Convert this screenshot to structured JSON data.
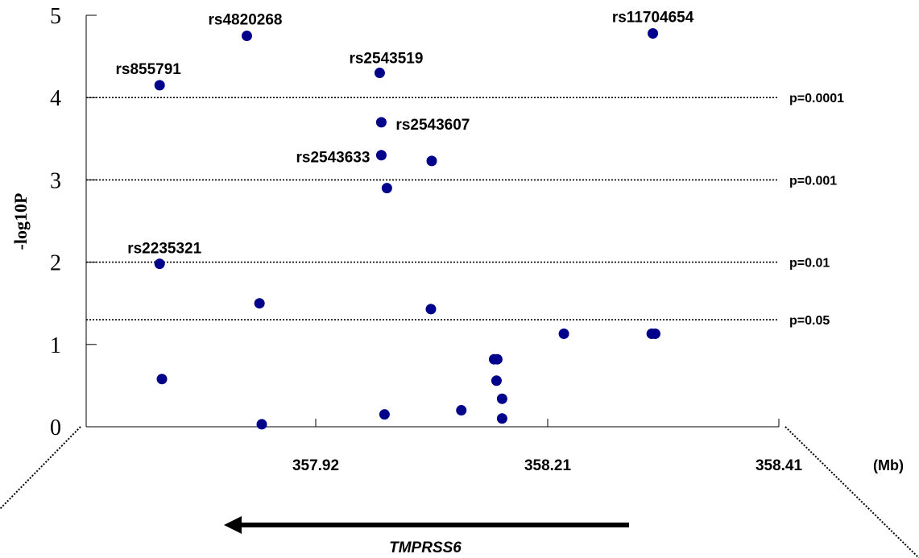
{
  "chart_data": {
    "type": "scatter",
    "xlabel": "(Mb)",
    "ylabel": "-log10P",
    "ylim": [
      0,
      5
    ],
    "xlim": [
      357.72,
      358.41
    ],
    "x_ticks": [
      357.92,
      358.21,
      358.41
    ],
    "y_ticks": [
      0,
      1,
      2,
      3,
      4,
      5
    ],
    "grid": false,
    "legend": "none",
    "marker_color": "#00008B",
    "thresholds": [
      {
        "label": "p=0.0001",
        "y": 4
      },
      {
        "label": "p=0.001",
        "y": 3
      },
      {
        "label": "p=0.01",
        "y": 2
      },
      {
        "label": "p=0.05",
        "y": 1.301
      }
    ],
    "points": [
      {
        "x": 357.86,
        "y": 4.75,
        "label": "rs4820268"
      },
      {
        "x": 358.301,
        "y": 4.78,
        "label": "rs11704654"
      },
      {
        "x": 358.0,
        "y": 4.3,
        "label": "rs2543519"
      },
      {
        "x": 357.784,
        "y": 4.15,
        "label": "rs855791"
      },
      {
        "x": 358.002,
        "y": 3.7,
        "label": "rs2543607"
      },
      {
        "x": 358.002,
        "y": 3.3,
        "label": "rs2543633"
      },
      {
        "x": 358.065,
        "y": 3.23,
        "label": ""
      },
      {
        "x": 358.009,
        "y": 2.9,
        "label": ""
      },
      {
        "x": 357.784,
        "y": 1.98,
        "label": "rs2235321"
      },
      {
        "x": 357.871,
        "y": 1.5,
        "label": ""
      },
      {
        "x": 358.064,
        "y": 1.43,
        "label": ""
      },
      {
        "x": 358.224,
        "y": 1.13,
        "label": ""
      },
      {
        "x": 358.3,
        "y": 1.13,
        "label": ""
      },
      {
        "x": 358.303,
        "y": 1.13,
        "label": ""
      },
      {
        "x": 358.143,
        "y": 0.82,
        "label": ""
      },
      {
        "x": 358.147,
        "y": 0.82,
        "label": ""
      },
      {
        "x": 357.786,
        "y": 0.58,
        "label": ""
      },
      {
        "x": 358.146,
        "y": 0.56,
        "label": ""
      },
      {
        "x": 358.153,
        "y": 0.34,
        "label": ""
      },
      {
        "x": 358.102,
        "y": 0.2,
        "label": ""
      },
      {
        "x": 358.006,
        "y": 0.15,
        "label": ""
      },
      {
        "x": 358.153,
        "y": 0.1,
        "label": ""
      },
      {
        "x": 357.873,
        "y": 0.03,
        "label": ""
      }
    ]
  },
  "gene": {
    "name": "TMPRSS6",
    "direction": "left"
  }
}
